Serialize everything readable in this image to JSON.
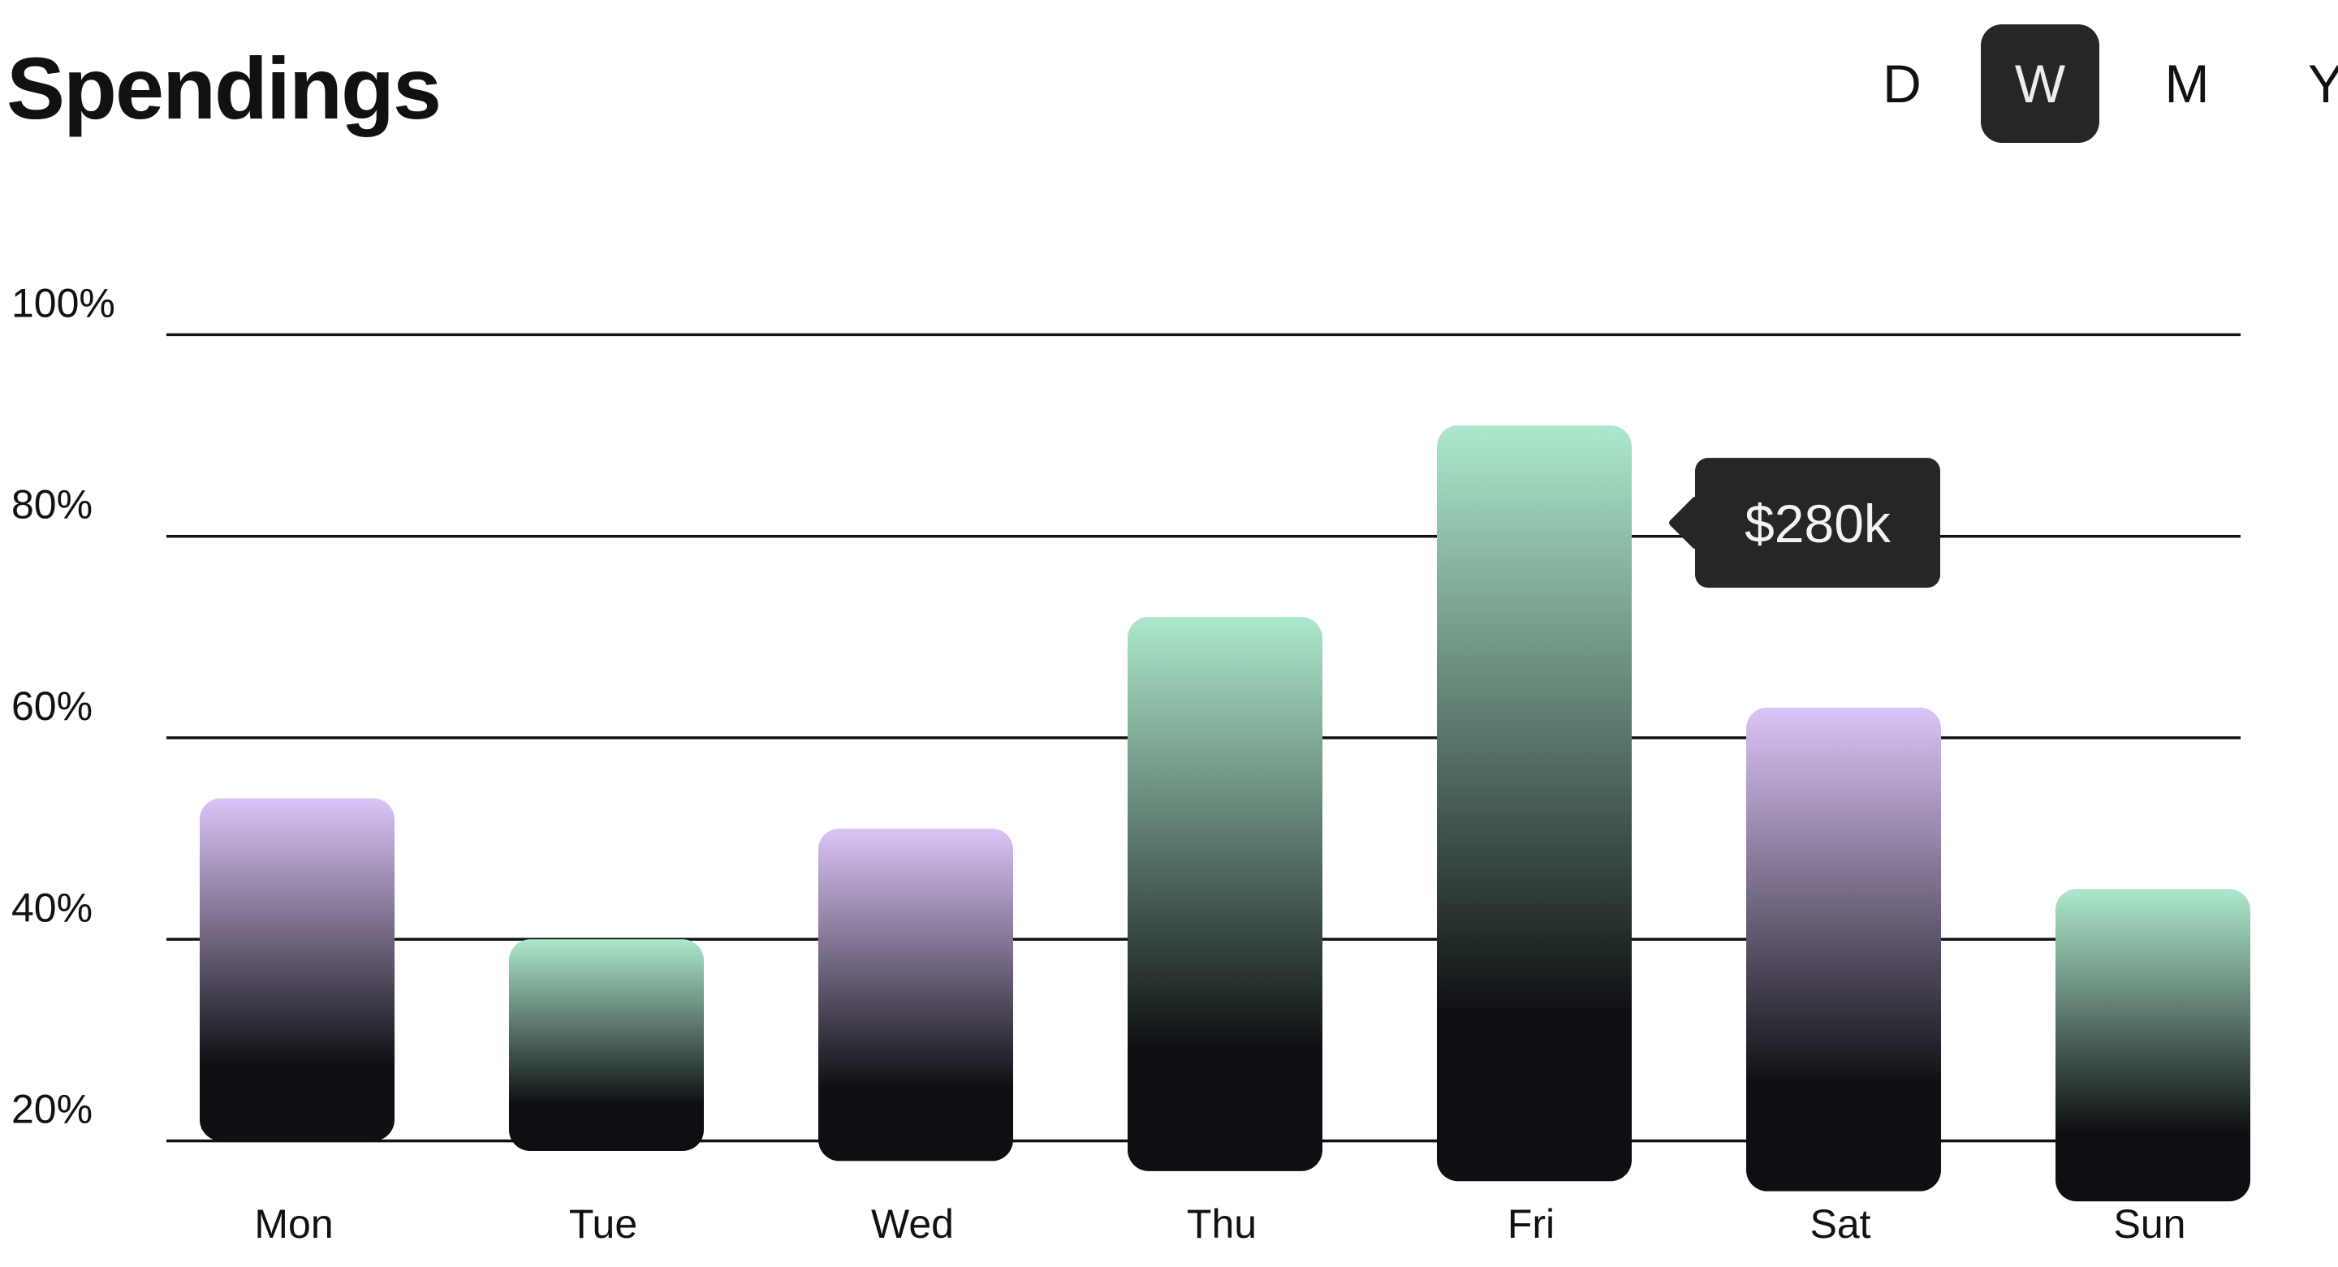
{
  "header": {
    "title": "Spendings"
  },
  "periods": [
    {
      "label": "D",
      "active": false
    },
    {
      "label": "W",
      "active": true
    },
    {
      "label": "M",
      "active": false
    },
    {
      "label": "Y",
      "active": false
    }
  ],
  "colors": {
    "grid": "#111111",
    "tooltip_bg": "#262626",
    "bar_dark": "#0e0f12",
    "green_top": "#ade8cc",
    "purple_top": "#dcc4f8"
  },
  "chart_data": {
    "type": "bar",
    "categories": [
      "Mon",
      "Tue",
      "Wed",
      "Thu",
      "Fri",
      "Sat",
      "Sun"
    ],
    "values": [
      54,
      40,
      51,
      72,
      91,
      63,
      45
    ],
    "bar_baselines": [
      20,
      19,
      18,
      17,
      16,
      15,
      14
    ],
    "bar_colors": [
      "purple",
      "green",
      "purple",
      "green",
      "green",
      "purple",
      "green"
    ],
    "yticks": [
      "100%",
      "80%",
      "60%",
      "40%",
      "20%"
    ],
    "ytick_values": [
      100,
      80,
      60,
      40,
      20
    ],
    "ylim": [
      13,
      107
    ],
    "grid": true,
    "tooltip": {
      "category": "Fri",
      "label": "$280k"
    }
  }
}
